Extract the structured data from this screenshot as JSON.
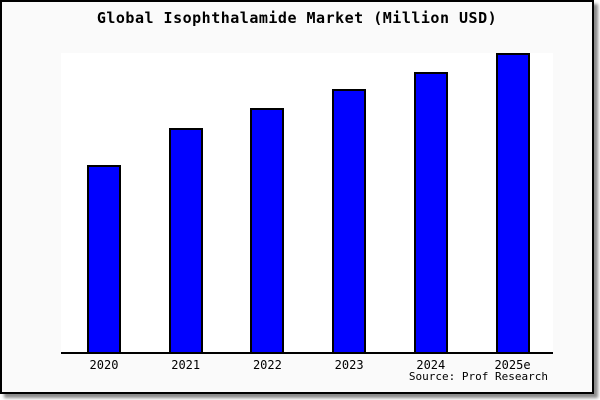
{
  "window": {
    "title": "Global Isophthalamide Market (Million USD)"
  },
  "chart_data": {
    "type": "bar",
    "title": "Global Isophthalamide Market (Million USD)",
    "categories": [
      "2020",
      "2021",
      "2022",
      "2023",
      "2024",
      "2025e"
    ],
    "values": [
      62.7,
      75.0,
      81.7,
      88.0,
      93.7,
      100.0
    ],
    "value_scale_note": "y-axis has no ticks or labels; values are bar heights relative to the tallest bar (2025e = 100)",
    "xlabel": "",
    "ylabel": "",
    "ylim": [
      0,
      100
    ],
    "grid": false,
    "legend": false,
    "y_axis_labeled": false,
    "bar_color": "#0000ff",
    "bar_border_color": "#000000",
    "axis_color": "#000000",
    "plot_bg": "#ffffff",
    "page_bg": "#fafafa"
  },
  "source": {
    "label": "Source: Prof Research"
  }
}
